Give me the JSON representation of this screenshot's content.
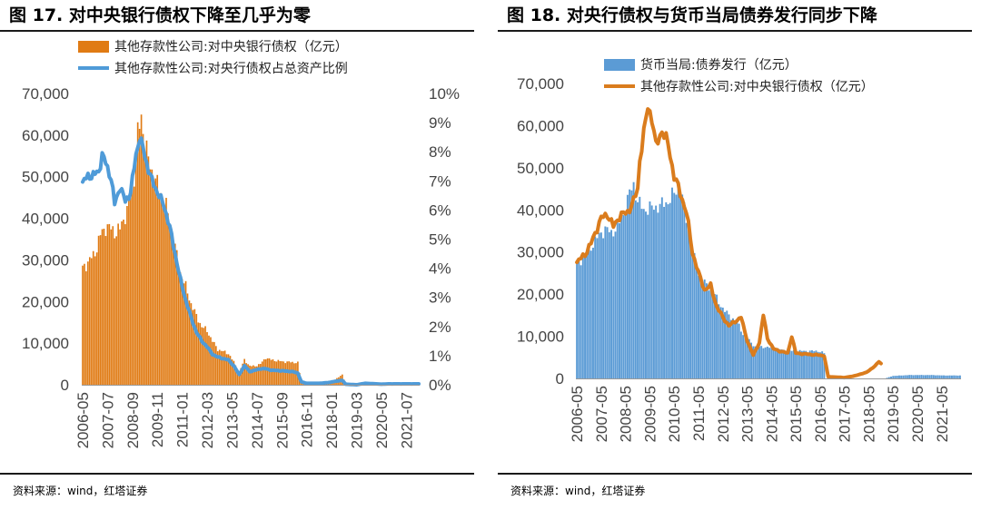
{
  "source_note": "资料来源：wind，红塔证券",
  "colors": {
    "orange": "#E07B14",
    "blue": "#5B9BD5",
    "blue_line": "#4F9BD8",
    "orange_line": "#DA7C1D"
  },
  "chart_data": [
    {
      "title": "图 17. 对中央银行债权下降至几乎为零",
      "type": "bar+line (dual axis)",
      "legend": [
        {
          "label": "其他存款性公司:对中央银行债权（亿元）",
          "kind": "bar"
        },
        {
          "label": "其他存款性公司:对央行债权占总资产比例",
          "kind": "line"
        }
      ],
      "y_left": {
        "min": 0,
        "max": 70000,
        "ticks": [
          "0",
          "10,000",
          "20,000",
          "30,000",
          "40,000",
          "50,000",
          "60,000",
          "70,000"
        ]
      },
      "y_right": {
        "min": 0,
        "max": 10,
        "unit": "%",
        "ticks": [
          "0%",
          "1%",
          "2%",
          "3%",
          "4%",
          "5%",
          "6%",
          "7%",
          "8%",
          "9%",
          "10%"
        ]
      },
      "x_start": "2006-05",
      "x_ticks": [
        "2006-05",
        "2007-07",
        "2008-09",
        "2009-11",
        "2011-01",
        "2012-03",
        "2013-05",
        "2014-07",
        "2015-09",
        "2016-11",
        "2018-01",
        "2019-03",
        "2020-05",
        "2021-07"
      ],
      "bar_series": {
        "name": "其他存款性公司:对中央银行债权（亿元）",
        "anchors": [
          [
            "2006-05",
            28000
          ],
          [
            "2006-08",
            29500
          ],
          [
            "2006-11",
            31000
          ],
          [
            "2007-01",
            33000
          ],
          [
            "2007-03",
            36000
          ],
          [
            "2007-06",
            38000
          ],
          [
            "2007-09",
            37500
          ],
          [
            "2007-12",
            36500
          ],
          [
            "2008-02",
            37500
          ],
          [
            "2008-04",
            40000
          ],
          [
            "2008-06",
            41500
          ],
          [
            "2008-08",
            46000
          ],
          [
            "2008-10",
            50000
          ],
          [
            "2008-12",
            60000
          ],
          [
            "2009-02",
            64500
          ],
          [
            "2009-04",
            58000
          ],
          [
            "2009-06",
            54000
          ],
          [
            "2009-09",
            50000
          ],
          [
            "2009-12",
            47000
          ],
          [
            "2010-03",
            44000
          ],
          [
            "2010-06",
            39500
          ],
          [
            "2010-09",
            33000
          ],
          [
            "2010-12",
            27000
          ],
          [
            "2011-03",
            23500
          ],
          [
            "2011-06",
            19500
          ],
          [
            "2011-09",
            16500
          ],
          [
            "2011-12",
            14000
          ],
          [
            "2012-03",
            13000
          ],
          [
            "2012-06",
            10500
          ],
          [
            "2012-09",
            8500
          ],
          [
            "2012-12",
            8000
          ],
          [
            "2013-03",
            7500
          ],
          [
            "2013-06",
            5500
          ],
          [
            "2013-09",
            3000
          ],
          [
            "2013-12",
            6000
          ],
          [
            "2014-03",
            4500
          ],
          [
            "2014-06",
            4500
          ],
          [
            "2014-09",
            5000
          ],
          [
            "2014-12",
            6500
          ],
          [
            "2015-03",
            6000
          ],
          [
            "2015-06",
            5800
          ],
          [
            "2015-09",
            5600
          ],
          [
            "2015-12",
            5500
          ],
          [
            "2016-03",
            5400
          ],
          [
            "2016-06",
            5300
          ],
          [
            "2016-08",
            400
          ],
          [
            "2016-11",
            200
          ],
          [
            "2017-06",
            300
          ],
          [
            "2017-12",
            800
          ],
          [
            "2018-03",
            1200
          ],
          [
            "2018-07",
            2500
          ],
          [
            "2018-09",
            0
          ],
          [
            "2019-03",
            0
          ],
          [
            "2019-08",
            600
          ],
          [
            "2020-01",
            300
          ],
          [
            "2020-05",
            500
          ],
          [
            "2020-09",
            400
          ],
          [
            "2021-06",
            400
          ],
          [
            "2021-12",
            350
          ],
          [
            "2022-02",
            350
          ]
        ]
      },
      "line_series": {
        "name": "其他存款性公司:对央行债权占总资产比例",
        "unit": "%",
        "anchors": [
          [
            "2006-05",
            6.95
          ],
          [
            "2006-08",
            7.15
          ],
          [
            "2006-11",
            7.2
          ],
          [
            "2007-02",
            7.3
          ],
          [
            "2007-04",
            7.9
          ],
          [
            "2007-06",
            7.6
          ],
          [
            "2007-09",
            7.1
          ],
          [
            "2007-11",
            6.2
          ],
          [
            "2008-02",
            6.8
          ],
          [
            "2008-05",
            6.3
          ],
          [
            "2008-08",
            6.6
          ],
          [
            "2008-11",
            7.9
          ],
          [
            "2009-01",
            8.5
          ],
          [
            "2009-03",
            8.1
          ],
          [
            "2009-05",
            7.6
          ],
          [
            "2009-08",
            7.0
          ],
          [
            "2009-12",
            6.5
          ],
          [
            "2010-03",
            6.1
          ],
          [
            "2010-06",
            5.4
          ],
          [
            "2010-09",
            4.5
          ],
          [
            "2010-12",
            3.6
          ],
          [
            "2011-03",
            2.9
          ],
          [
            "2011-06",
            2.3
          ],
          [
            "2011-09",
            1.8
          ],
          [
            "2011-12",
            1.5
          ],
          [
            "2012-03",
            1.3
          ],
          [
            "2012-06",
            1.05
          ],
          [
            "2012-09",
            0.95
          ],
          [
            "2012-12",
            0.9
          ],
          [
            "2013-03",
            0.85
          ],
          [
            "2013-06",
            0.65
          ],
          [
            "2013-09",
            0.35
          ],
          [
            "2013-12",
            0.65
          ],
          [
            "2014-03",
            0.45
          ],
          [
            "2014-06",
            0.5
          ],
          [
            "2014-09",
            0.55
          ],
          [
            "2014-12",
            0.55
          ],
          [
            "2015-03",
            0.5
          ],
          [
            "2015-09",
            0.48
          ],
          [
            "2016-03",
            0.45
          ],
          [
            "2016-06",
            0.4
          ],
          [
            "2016-08",
            0.1
          ],
          [
            "2016-11",
            0.05
          ],
          [
            "2017-06",
            0.05
          ],
          [
            "2017-12",
            0.08
          ],
          [
            "2018-03",
            0.12
          ],
          [
            "2018-07",
            0.15
          ],
          [
            "2018-09",
            0.02
          ],
          [
            "2019-03",
            0.0
          ],
          [
            "2019-08",
            0.05
          ],
          [
            "2020-05",
            0.02
          ],
          [
            "2020-09",
            0.03
          ],
          [
            "2021-06",
            0.03
          ],
          [
            "2022-02",
            0.03
          ]
        ]
      }
    },
    {
      "title": "图 18. 对央行债权与货币当局债券发行同步下降",
      "type": "bar+line",
      "legend": [
        {
          "label": "货币当局:债券发行（亿元）",
          "kind": "bar"
        },
        {
          "label": "其他存款性公司:对中央银行债权（亿元）",
          "kind": "line"
        }
      ],
      "y": {
        "min": 0,
        "max": 70000,
        "ticks": [
          "0",
          "10,000",
          "20,000",
          "30,000",
          "40,000",
          "50,000",
          "60,000",
          "70,000"
        ]
      },
      "x_start": "2006-05",
      "x_ticks": [
        "2006-05",
        "2007-05",
        "2008-05",
        "2009-05",
        "2010-05",
        "2011-05",
        "2012-05",
        "2013-05",
        "2014-05",
        "2015-05",
        "2016-05",
        "2017-05",
        "2018-05",
        "2019-05",
        "2020-05",
        "2021-05"
      ],
      "bar_series": {
        "name": "货币当局:债券发行（亿元）",
        "anchors": [
          [
            "2006-05",
            27500
          ],
          [
            "2006-09",
            29000
          ],
          [
            "2007-01",
            32000
          ],
          [
            "2007-04",
            34000
          ],
          [
            "2007-07",
            35500
          ],
          [
            "2007-10",
            34500
          ],
          [
            "2008-01",
            36000
          ],
          [
            "2008-04",
            39000
          ],
          [
            "2008-07",
            44000
          ],
          [
            "2008-09",
            46000
          ],
          [
            "2008-11",
            42000
          ],
          [
            "2009-02",
            40000
          ],
          [
            "2009-06",
            40500
          ],
          [
            "2009-10",
            41000
          ],
          [
            "2010-02",
            42000
          ],
          [
            "2010-06",
            44500
          ],
          [
            "2010-08",
            45000
          ],
          [
            "2010-11",
            38000
          ],
          [
            "2011-02",
            30000
          ],
          [
            "2011-05",
            25000
          ],
          [
            "2011-09",
            22000
          ],
          [
            "2011-12",
            21000
          ],
          [
            "2012-03",
            18000
          ],
          [
            "2012-06",
            16000
          ],
          [
            "2012-09",
            14500
          ],
          [
            "2012-12",
            13500
          ],
          [
            "2013-03",
            10500
          ],
          [
            "2013-06",
            9000
          ],
          [
            "2013-09",
            7500
          ],
          [
            "2014-01",
            7500
          ],
          [
            "2014-06",
            7200
          ],
          [
            "2014-12",
            6600
          ],
          [
            "2015-06",
            6500
          ],
          [
            "2015-12",
            6500
          ],
          [
            "2016-04",
            6500
          ],
          [
            "2016-07",
            6000
          ],
          [
            "2016-08",
            0
          ],
          [
            "2019-01",
            0
          ],
          [
            "2019-05",
            600
          ],
          [
            "2020-01",
            800
          ],
          [
            "2020-12",
            800
          ],
          [
            "2021-06",
            700
          ],
          [
            "2022-02",
            700
          ]
        ]
      },
      "line_series": {
        "name": "其他存款性公司:对中央银行债权（亿元）",
        "anchors": [
          [
            "2006-05",
            27500
          ],
          [
            "2006-09",
            29500
          ],
          [
            "2006-12",
            32000
          ],
          [
            "2007-02",
            34500
          ],
          [
            "2007-05",
            38000
          ],
          [
            "2007-08",
            39000
          ],
          [
            "2007-11",
            36000
          ],
          [
            "2008-02",
            38500
          ],
          [
            "2008-06",
            39500
          ],
          [
            "2008-09",
            42000
          ],
          [
            "2008-11",
            45000
          ],
          [
            "2008-12",
            52000
          ],
          [
            "2009-02",
            58000
          ],
          [
            "2009-04",
            64500
          ],
          [
            "2009-06",
            62000
          ],
          [
            "2009-08",
            55000
          ],
          [
            "2009-11",
            59000
          ],
          [
            "2010-02",
            55500
          ],
          [
            "2010-05",
            48000
          ],
          [
            "2010-08",
            44000
          ],
          [
            "2010-11",
            39500
          ],
          [
            "2011-02",
            30000
          ],
          [
            "2011-05",
            25000
          ],
          [
            "2011-08",
            21000
          ],
          [
            "2011-11",
            22000
          ],
          [
            "2012-02",
            17000
          ],
          [
            "2012-05",
            14500
          ],
          [
            "2012-08",
            12500
          ],
          [
            "2012-11",
            13500
          ],
          [
            "2013-02",
            14500
          ],
          [
            "2013-05",
            9000
          ],
          [
            "2013-08",
            5500
          ],
          [
            "2013-11",
            8500
          ],
          [
            "2014-01",
            15000
          ],
          [
            "2014-03",
            9500
          ],
          [
            "2014-06",
            7000
          ],
          [
            "2014-09",
            6500
          ],
          [
            "2015-01",
            6000
          ],
          [
            "2015-03",
            10000
          ],
          [
            "2015-05",
            6000
          ],
          [
            "2015-09",
            5800
          ],
          [
            "2016-03",
            5600
          ],
          [
            "2016-07",
            5400
          ],
          [
            "2016-09",
            400
          ],
          [
            "2017-05",
            200
          ],
          [
            "2017-09",
            500
          ],
          [
            "2018-01",
            1000
          ],
          [
            "2018-04",
            1500
          ],
          [
            "2018-07",
            2500
          ],
          [
            "2018-09",
            3500
          ],
          [
            "2018-10",
            4000
          ],
          [
            "2018-11",
            3500
          ]
        ]
      }
    }
  ]
}
